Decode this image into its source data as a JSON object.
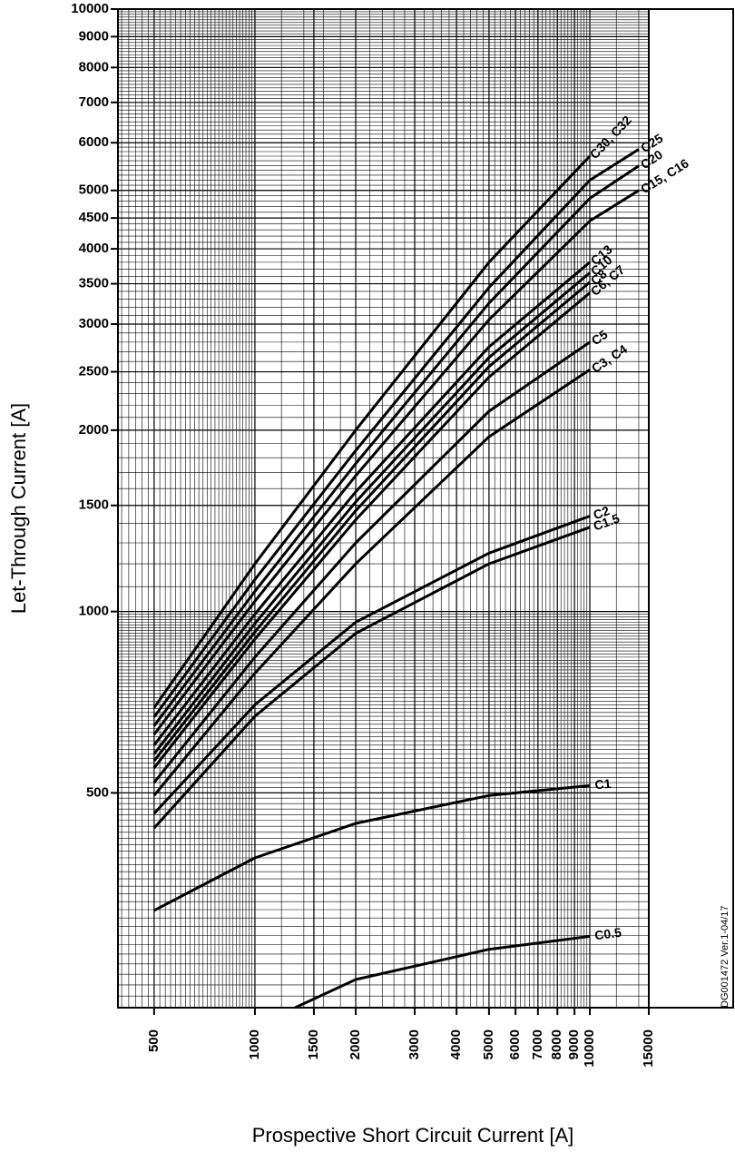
{
  "chart_data": {
    "type": "line",
    "x_label": "Prospective Short Circuit Current [A]",
    "y_label": "Let-Through Current [A]",
    "annotation": "DG001472  Ver.1-04/17",
    "log_x": true,
    "log_y": true,
    "grid": true,
    "minor_grid": true,
    "color": "#000000",
    "xlim": [
      390,
      15000
    ],
    "ylim": [
      220,
      10000
    ],
    "xticks": [
      500,
      1000,
      1500,
      2000,
      3000,
      4000,
      5000,
      6000,
      7000,
      8000,
      9000,
      10000,
      15000
    ],
    "yticks": [
      500,
      1000,
      1500,
      2000,
      2500,
      3000,
      3500,
      4000,
      4500,
      5000,
      6000,
      7000,
      8000,
      9000,
      10000
    ],
    "series": [
      {
        "name": "C30, C32",
        "x": [
          500,
          1000,
          2000,
          5000,
          10000
        ],
        "values": [
          692,
          1200,
          2000,
          3800,
          5700
        ]
      },
      {
        "name": "C25",
        "x": [
          500,
          1000,
          2000,
          5000,
          10000,
          14000
        ],
        "values": [
          668,
          1130,
          1850,
          3450,
          5200,
          5850
        ]
      },
      {
        "name": "C20",
        "x": [
          500,
          1000,
          2000,
          5000,
          10000,
          14000
        ],
        "values": [
          646,
          1080,
          1760,
          3250,
          4850,
          5490
        ]
      },
      {
        "name": "C15, C16",
        "x": [
          500,
          1000,
          2000,
          5000,
          10000,
          14000
        ],
        "values": [
          625,
          1040,
          1680,
          3050,
          4450,
          5000
        ]
      },
      {
        "name": "C13",
        "x": [
          500,
          1000,
          2000,
          5000,
          10000
        ],
        "values": [
          600,
          990,
          1580,
          2750,
          3800
        ]
      },
      {
        "name": "C10",
        "x": [
          500,
          1000,
          2000,
          5000,
          10000
        ],
        "values": [
          580,
          955,
          1520,
          2640,
          3650
        ]
      },
      {
        "name": "C8",
        "x": [
          500,
          1000,
          2000,
          5000,
          10000
        ],
        "values": [
          565,
          925,
          1470,
          2550,
          3520
        ]
      },
      {
        "name": "C6, C7",
        "x": [
          500,
          1000,
          2000,
          5000,
          10000
        ],
        "values": [
          550,
          900,
          1420,
          2450,
          3380
        ]
      },
      {
        "name": "C5",
        "x": [
          500,
          1000,
          2000,
          5000,
          10000
        ],
        "values": [
          520,
          840,
          1300,
          2150,
          2800
        ]
      },
      {
        "name": "C3, C4",
        "x": [
          500,
          1000,
          2000,
          5000,
          10000
        ],
        "values": [
          495,
          790,
          1200,
          1950,
          2520
        ]
      },
      {
        "name": "C2",
        "x": [
          500,
          1000,
          2000,
          5000,
          10000
        ],
        "values": [
          462,
          700,
          960,
          1250,
          1440
        ]
      },
      {
        "name": "C1.5",
        "x": [
          500,
          1000,
          2000,
          5000,
          10000
        ],
        "values": [
          437,
          670,
          920,
          1200,
          1380
        ]
      },
      {
        "name": "C1",
        "x": [
          500,
          1000,
          2000,
          5000,
          10000
        ],
        "values": [
          319,
          390,
          445,
          495,
          514
        ]
      },
      {
        "name": "C0.5",
        "x": [
          1318,
          2000,
          5000,
          10000
        ],
        "values": [
          220,
          245,
          275,
          289
        ]
      }
    ]
  }
}
